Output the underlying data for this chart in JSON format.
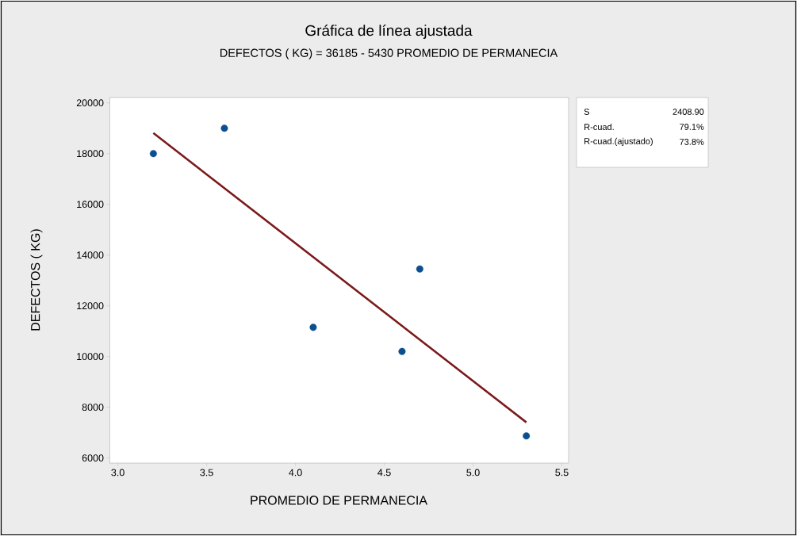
{
  "chart_data": {
    "type": "scatter",
    "title": "Gráfica de línea ajustada",
    "subtitle": "DEFECTOS ( KG) = 36185 - 5430 PROMEDIO DE PERMANECIA",
    "xlabel": "PROMEDIO DE PERMANECIA",
    "ylabel": "DEFECTOS ( KG)",
    "annotations": [
      "S",
      "2408.90",
      "R-cuad.",
      "79.1%",
      "R-cuad.(ajustado)",
      "73.8%"
    ],
    "xlim": [
      2.955,
      5.538
    ],
    "ylim": [
      5800,
      20210
    ],
    "xticks": [
      {
        "value": 3,
        "label": "3.0"
      },
      {
        "value": 3.5,
        "label": "3.5"
      },
      {
        "value": 4,
        "label": "4.0"
      },
      {
        "value": 4.5,
        "label": "4.5"
      },
      {
        "value": 5,
        "label": "5.0"
      },
      {
        "value": 5.5,
        "label": "5.5"
      }
    ],
    "yticks": [
      6000,
      8000,
      10000,
      12000,
      14000,
      16000,
      18000,
      20000
    ],
    "grid": false,
    "series": [
      {
        "marker": "circle",
        "color": "#0b4f8f",
        "x": [
          3.2,
          3.6,
          4.1,
          4.6,
          4.7,
          5.3
        ],
        "values": [
          18000,
          19000,
          11150,
          10200,
          13450,
          6870
        ]
      },
      {
        "type": "line",
        "marker": "none",
        "line_style": "solid",
        "color": "#7b1a1a",
        "x": [
          3.2,
          5.3
        ],
        "values": [
          18809,
          7406
        ]
      }
    ]
  }
}
